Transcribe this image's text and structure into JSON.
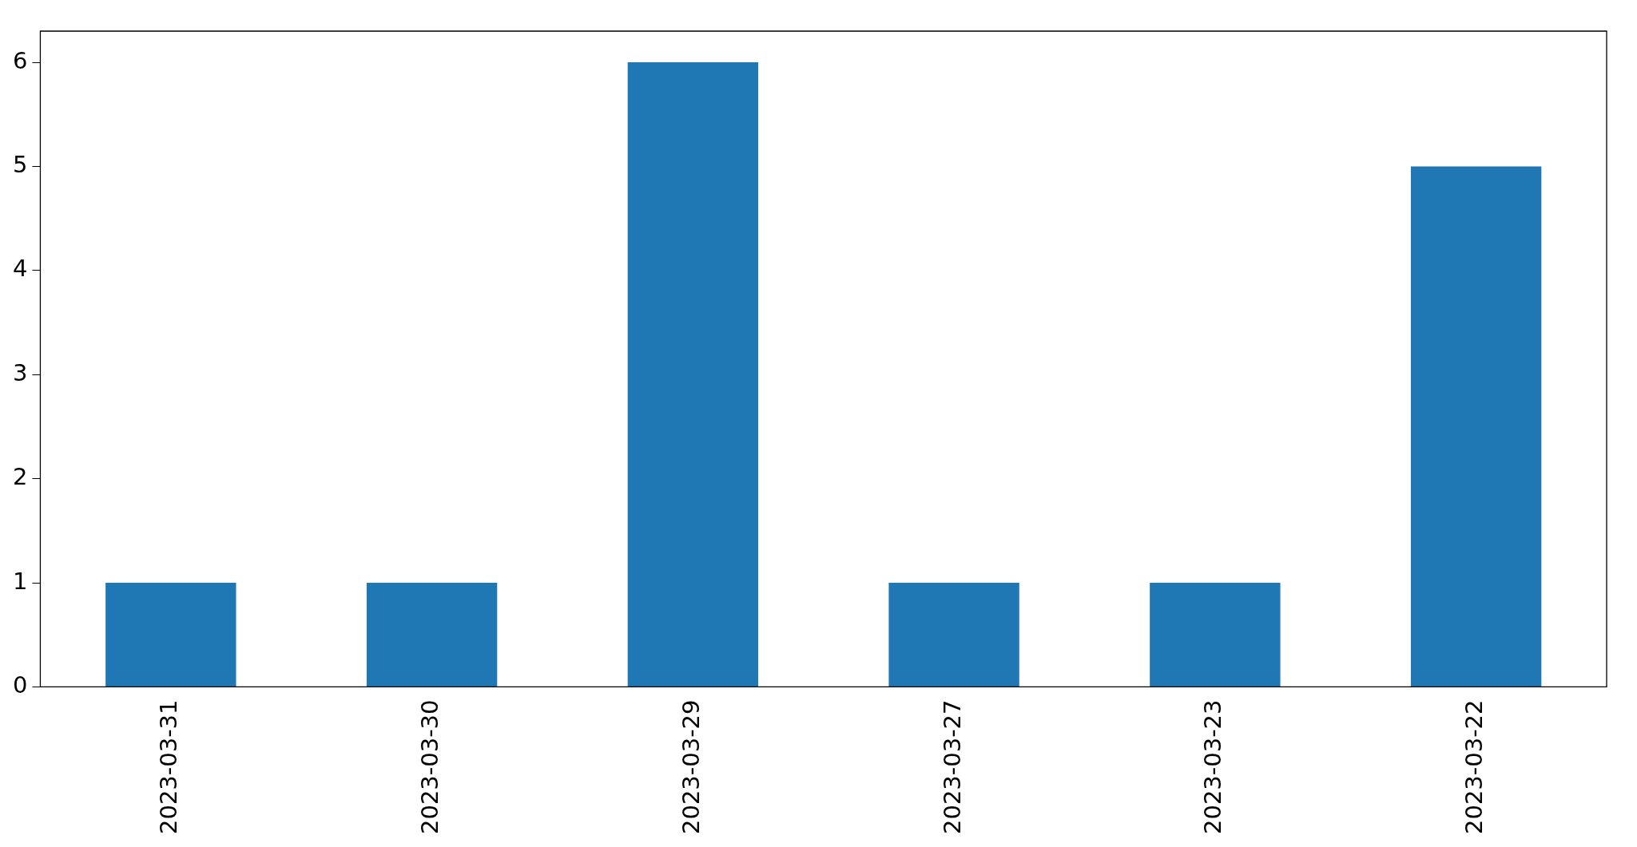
{
  "chart_data": {
    "type": "bar",
    "categories": [
      "2023-03-31",
      "2023-03-30",
      "2023-03-29",
      "2023-03-27",
      "2023-03-23",
      "2023-03-22"
    ],
    "values": [
      1,
      1,
      6,
      1,
      1,
      5
    ],
    "color": "#1f77b4",
    "ylim": [
      0,
      6.3
    ],
    "yticks": [
      0,
      1,
      2,
      3,
      4,
      5,
      6
    ],
    "grid": false,
    "legend": false
  }
}
